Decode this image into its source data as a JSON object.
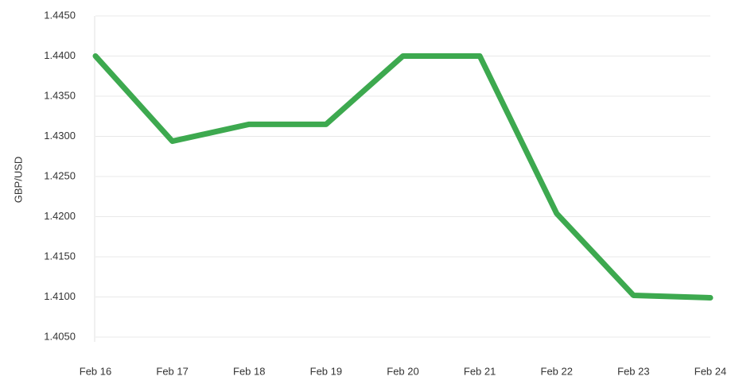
{
  "chart_data": {
    "type": "line",
    "y_label": "GBP/USD",
    "categories": [
      "Feb 16",
      "Feb 17",
      "Feb 18",
      "Feb 19",
      "Feb 20",
      "Feb 21",
      "Feb 22",
      "Feb 23",
      "Feb 24"
    ],
    "values": [
      1.44,
      1.4294,
      1.4315,
      1.4315,
      1.44,
      1.44,
      1.4204,
      1.4102,
      1.4099
    ],
    "color": "#3da94f",
    "ylim": [
      1.405,
      1.445
    ],
    "yticks": [
      {
        "value": 1.405,
        "label": "1.4050"
      },
      {
        "value": 1.41,
        "label": "1.4100"
      },
      {
        "value": 1.415,
        "label": "1.4150"
      },
      {
        "value": 1.42,
        "label": "1.4200"
      },
      {
        "value": 1.425,
        "label": "1.4250"
      },
      {
        "value": 1.43,
        "label": "1.4300"
      },
      {
        "value": 1.435,
        "label": "1.4350"
      },
      {
        "value": 1.44,
        "label": "1.4400"
      },
      {
        "value": 1.445,
        "label": "1.4450"
      }
    ],
    "grid": true
  }
}
